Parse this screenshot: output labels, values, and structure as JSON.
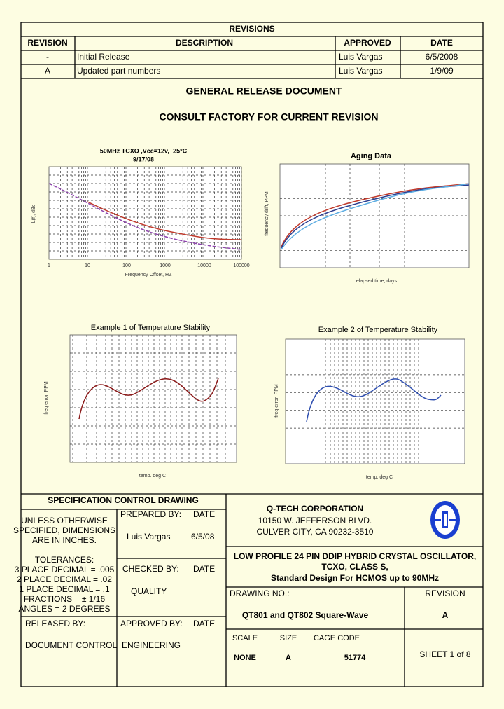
{
  "revisions": {
    "title": "REVISIONS",
    "headers": [
      "REVISION",
      "DESCRIPTION",
      "APPROVED",
      "DATE"
    ],
    "rows": [
      [
        "-",
        "Initial Release",
        "Luis Vargas",
        "6/5/2008"
      ],
      [
        "A",
        "Updated part numbers",
        "Luis Vargas",
        "1/9/09"
      ]
    ]
  },
  "notice": [
    "GENERAL RELEASE DOCUMENT",
    "CONSULT FACTORY FOR CURRENT REVISION"
  ],
  "plots": [
    {
      "title": "50MHz TCXO ,Vcc=12v,+25°C",
      "subtitle": "9/17/08",
      "x_label": "Frequency Offset, HZ",
      "y_label": "L(f), dBc",
      "x_ticks": [
        "1",
        "10",
        "100",
        "1000",
        "10000",
        "100000"
      ]
    },
    {
      "title": "Aging Data",
      "x_label": "elapsed time, days",
      "y_label": "frequency drift, PPM"
    },
    {
      "title": "Example 1 of Temperature Stability",
      "x_label": "temp. deg C",
      "y_label": "freq error, PPM"
    },
    {
      "title": "Example 2 of Temperature Stability",
      "x_label": "temp. deg C",
      "y_label": "freq error, PPM"
    }
  ],
  "title_block": {
    "heading": "SPECIFICATION CONTROL DRAWING",
    "notes": [
      "UNLESS OTHERWISE",
      "SPECIFIED, DIMENSIONS",
      "ARE IN INCHES.",
      "TOLERANCES:",
      "3 PLACE DECIMAL = .005",
      "2 PLACE DECIMAL = .02",
      "1 PLACE DECIMAL = .1",
      "FRACTIONS = ± 1/16",
      "ANGLES = 2 DEGREES"
    ],
    "prepared_by_label": "PREPARED BY:",
    "prepared_date_label": "DATE",
    "prepared_by": "Luis Vargas",
    "prepared_date": "6/5/08",
    "checked_by_label": "CHECKED BY:",
    "checked_date_label": "DATE",
    "checked_by": "QUALITY",
    "released_by_label": "RELEASED BY:",
    "released_by": "DOCUMENT CONTROL",
    "approved_by_label": "APPROVED BY:",
    "approved_date_label": "DATE",
    "approved_by": "ENGINEERING",
    "company": [
      "Q-TECH CORPORATION",
      "10150 W. JEFFERSON BLVD.",
      "CULVER CITY, CA  90232-3510"
    ],
    "product": [
      "LOW PROFILE 24 PIN DDIP HYBRID CRYSTAL OSCILLATOR,",
      "TCXO, CLASS S,",
      "Standard Design For HCMOS up to 90MHz"
    ],
    "drawing_no_label": "DRAWING NO.:",
    "drawing_no": "QT801 and QT802 Square-Wave",
    "revision_label": "REVISION",
    "revision": "A",
    "scale_label": "SCALE",
    "scale": "NONE",
    "size_label": "SIZE",
    "size": "A",
    "cage_code_label": "CAGE CODE",
    "cage_code": "51774",
    "sheet": "SHEET 1 of 8"
  }
}
